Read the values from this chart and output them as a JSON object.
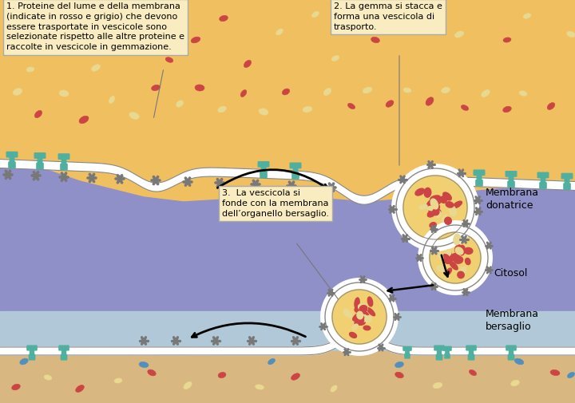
{
  "bg_lumen_top": "#F0C060",
  "bg_purple": "#9090C8",
  "bg_cytosol": "#B0C8D8",
  "bg_lumen_bot": "#D8B880",
  "white_mem": "#FFFFFF",
  "mem_outline": "#888888",
  "vesicle_fill": "#F0D070",
  "teal": "#50B0A0",
  "gray": "#787878",
  "red_prot": "#CC4444",
  "cream_prot": "#E8D890",
  "blue_prot": "#5090C0",
  "callout_bg": "#F8ECC0",
  "callout_ec": "#AAAAAA",
  "text1": "1. Proteine del lume e della membrana\n(indicate in rosso e grigio) che devono\nessere trasportate in vescicole sono\nselezionate rispetto alle altre proteine e\nraccolte in vescicole in gemmazione.",
  "text2": "2. La gemma si stacca e\nforma una vescicola di\ntrasporto.",
  "text3": "3.  La vescicola si\nfonde con la membrana\ndell’organello bersaglio.",
  "lbl_don": "Membrana\ndonatrice",
  "lbl_cit": "Citosol",
  "lbl_ber": "Membrana\nbersaglio"
}
